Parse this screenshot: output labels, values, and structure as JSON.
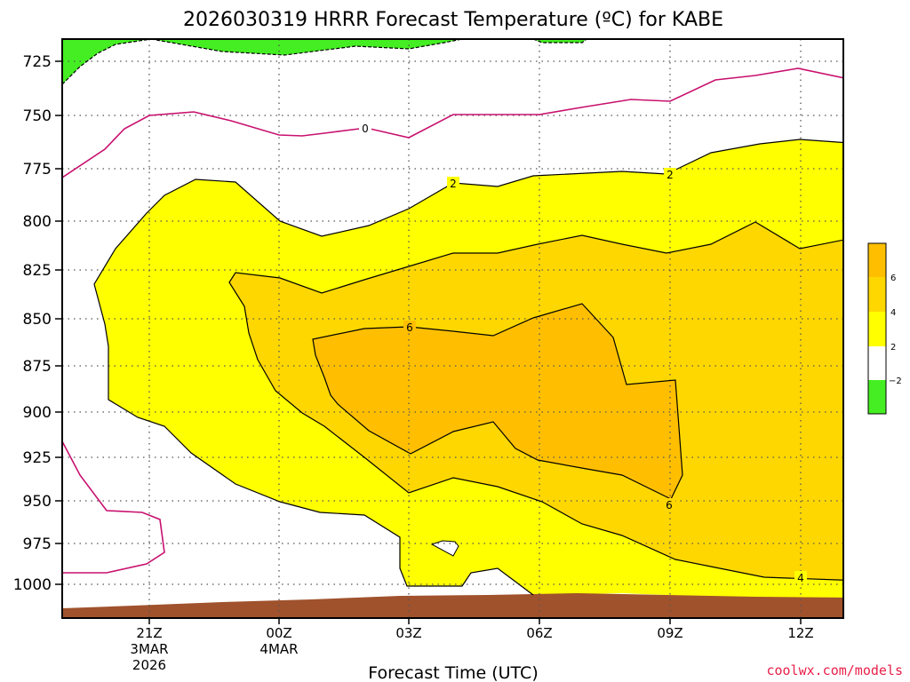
{
  "chart_data": {
    "type": "contour",
    "title": "2026030319 HRRR Forecast Temperature (ºC) for KABE",
    "xlabel": "Forecast Time (UTC)",
    "ylabel": "",
    "y_ticks": [
      "725",
      "750",
      "775",
      "800",
      "825",
      "850",
      "875",
      "900",
      "925",
      "950",
      "975",
      "1000"
    ],
    "x_ticks": [
      {
        "label": "21Z",
        "date": "3MAR",
        "year": "2026"
      },
      {
        "label": "00Z",
        "date": "4MAR",
        "year": ""
      },
      {
        "label": "03Z",
        "date": "",
        "year": ""
      },
      {
        "label": "06Z",
        "date": "",
        "year": ""
      },
      {
        "label": "09Z",
        "date": "",
        "year": ""
      },
      {
        "label": "12Z",
        "date": "",
        "year": ""
      }
    ],
    "contour_labels": [
      "0",
      "2",
      "6",
      "6",
      "2",
      "4"
    ],
    "colorbar_labels": [
      "6",
      "4",
      "2",
      "−2"
    ],
    "colors": {
      "below_minus2": "#44ee22",
      "zero_to_2": "#ffffff",
      "2_to_4": "#ffff00",
      "4_to_6": "#ffd700",
      "above_6": "#ffbf00",
      "zero_line": "#c8106e",
      "ground": "#a0522d"
    },
    "grid": true
  },
  "watermark": "coolwx.com/models"
}
